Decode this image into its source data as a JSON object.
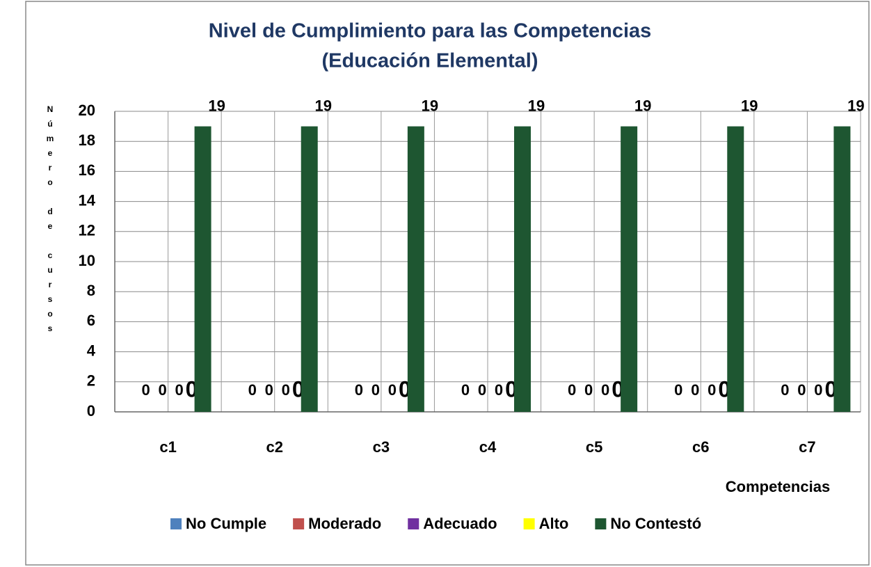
{
  "chart_data": {
    "type": "bar",
    "title": [
      "Nivel de Cumplimiento para las Competencias",
      "(Educación Elemental)"
    ],
    "ylabel": "Número de cursos",
    "xlabel": "Competencias",
    "categories": [
      "c1",
      "c2",
      "c3",
      "c4",
      "c5",
      "c6",
      "c7"
    ],
    "series": [
      {
        "name": "No Cumple",
        "color": "#4f81bd",
        "values": [
          0,
          0,
          0,
          0,
          0,
          0,
          0
        ]
      },
      {
        "name": "Moderado",
        "color": "#c0504d",
        "values": [
          0,
          0,
          0,
          0,
          0,
          0,
          0
        ]
      },
      {
        "name": "Adecuado",
        "color": "#7030a0",
        "values": [
          0,
          0,
          0,
          0,
          0,
          0,
          0
        ]
      },
      {
        "name": "Alto",
        "color": "#ffff00",
        "values": [
          0,
          0,
          0,
          0,
          0,
          0,
          0
        ]
      },
      {
        "name": "No Contestó",
        "color": "#1e5631",
        "values": [
          19,
          19,
          19,
          19,
          19,
          19,
          19
        ]
      }
    ],
    "ylim": [
      0,
      20
    ],
    "yticks": [
      0,
      2,
      4,
      6,
      8,
      10,
      12,
      14,
      16,
      18,
      20
    ],
    "grid": true,
    "legend": "bottom"
  }
}
